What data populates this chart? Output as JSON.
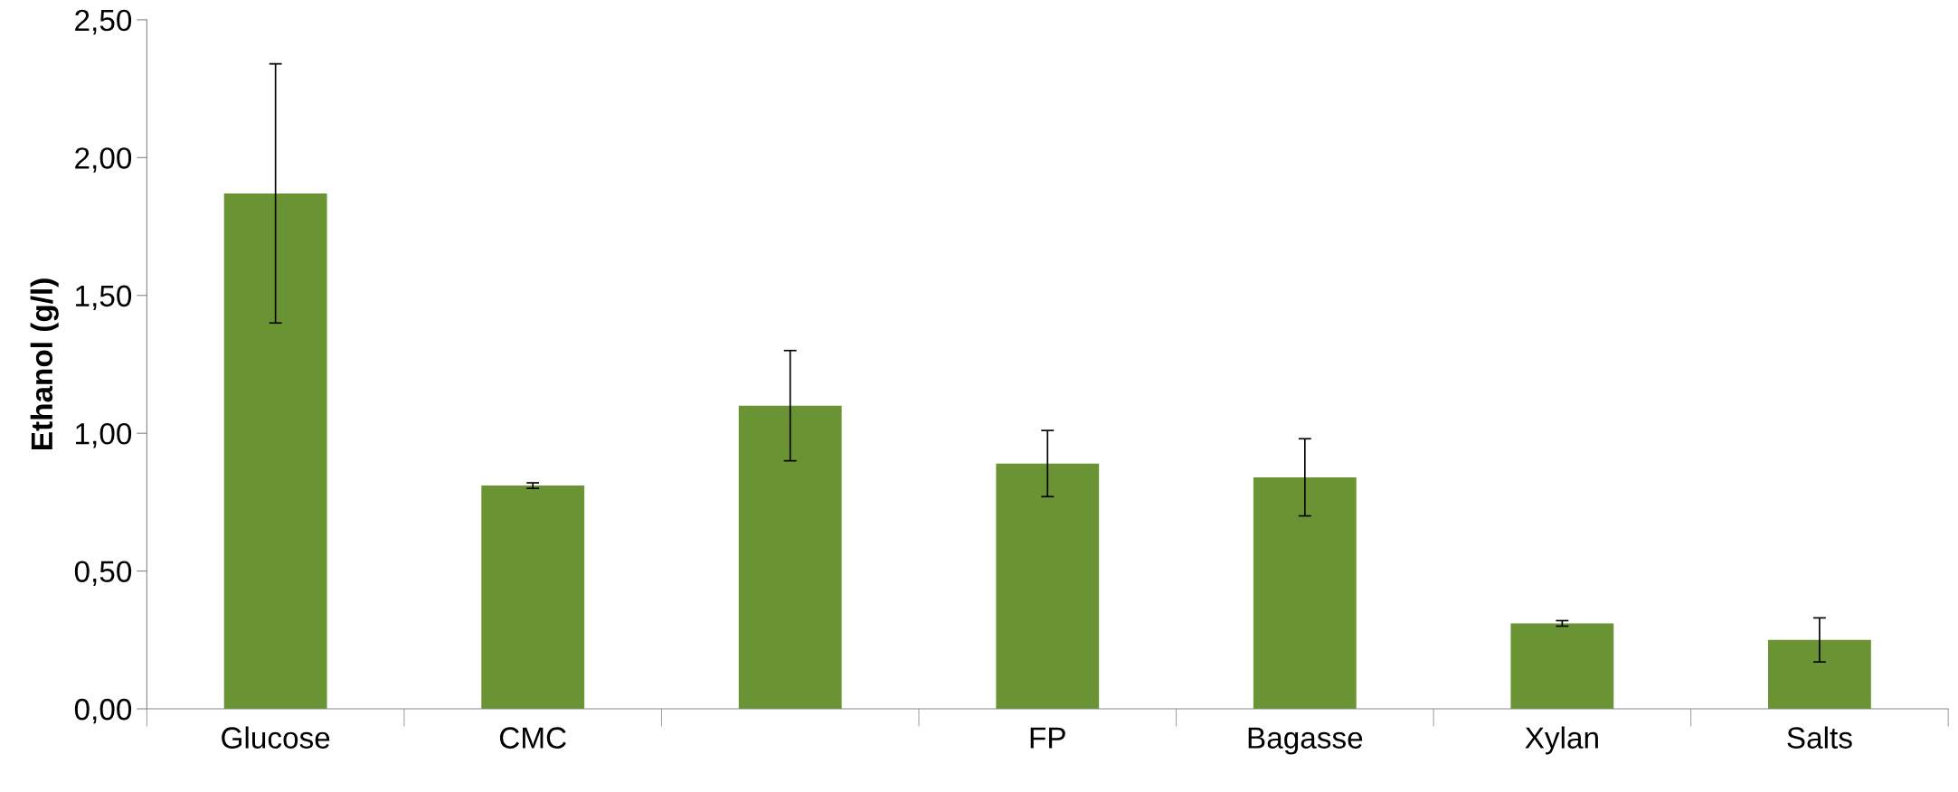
{
  "chart_data": {
    "type": "bar",
    "ylabel": "Ethanol (g/l)",
    "categories": [
      "Glucose",
      "CMC",
      null,
      "FP",
      "Bagasse",
      "Xylan",
      "Salts"
    ],
    "values": [
      1.87,
      0.81,
      1.1,
      0.89,
      0.84,
      0.31,
      0.25
    ],
    "errors": [
      0.47,
      0.01,
      0.2,
      0.12,
      0.14,
      0.01,
      0.08
    ],
    "color": "#6a9433",
    "ylim": [
      0,
      2.5
    ],
    "yticks": [
      {
        "value": 0,
        "label": "0,00"
      },
      {
        "value": 0.5,
        "label": "0,50"
      },
      {
        "value": 1,
        "label": "1,00"
      },
      {
        "value": 1.5,
        "label": "1,50"
      },
      {
        "value": 2,
        "label": "2,00"
      },
      {
        "value": 2.5,
        "label": "2,50"
      }
    ],
    "grid": false
  }
}
